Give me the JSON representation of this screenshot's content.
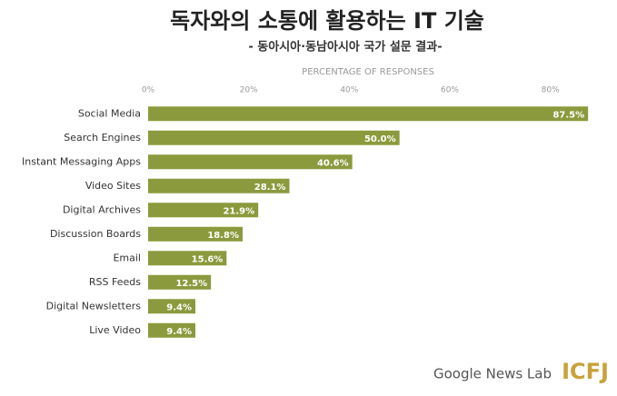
{
  "chart_data": {
    "type": "bar",
    "orientation": "horizontal",
    "title": "독자와의 소통에 활용하는 IT 기술",
    "subtitle": "- 동아시아·동남아시아 국가 설문 결과-",
    "x_label": "PERCENTAGE OF RESPONSES",
    "categories": [
      "Social Media",
      "Search Engines",
      "Instant Messaging Apps",
      "Video Sites",
      "Digital Archives",
      "Discussion Boards",
      "Email",
      "RSS Feeds",
      "Digital Newsletters",
      "Live Video"
    ],
    "values": [
      87.5,
      50.0,
      40.6,
      28.1,
      21.9,
      18.8,
      15.6,
      12.5,
      9.4,
      9.4
    ],
    "value_labels": [
      "87.5%",
      "50.0%",
      "40.6%",
      "28.1%",
      "21.9%",
      "18.8%",
      "15.6%",
      "12.5%",
      "9.4%",
      "9.4%"
    ],
    "color": "#8b9a3d",
    "xlim": [
      0,
      90
    ],
    "xticks": [
      {
        "value": 0,
        "label": "0%"
      },
      {
        "value": 20,
        "label": "20%"
      },
      {
        "value": 40,
        "label": "40%"
      },
      {
        "value": 60,
        "label": "60%"
      },
      {
        "value": 80,
        "label": "80%"
      }
    ],
    "grid": false,
    "annotations": [
      "Google News Lab",
      "ICFJ"
    ]
  }
}
